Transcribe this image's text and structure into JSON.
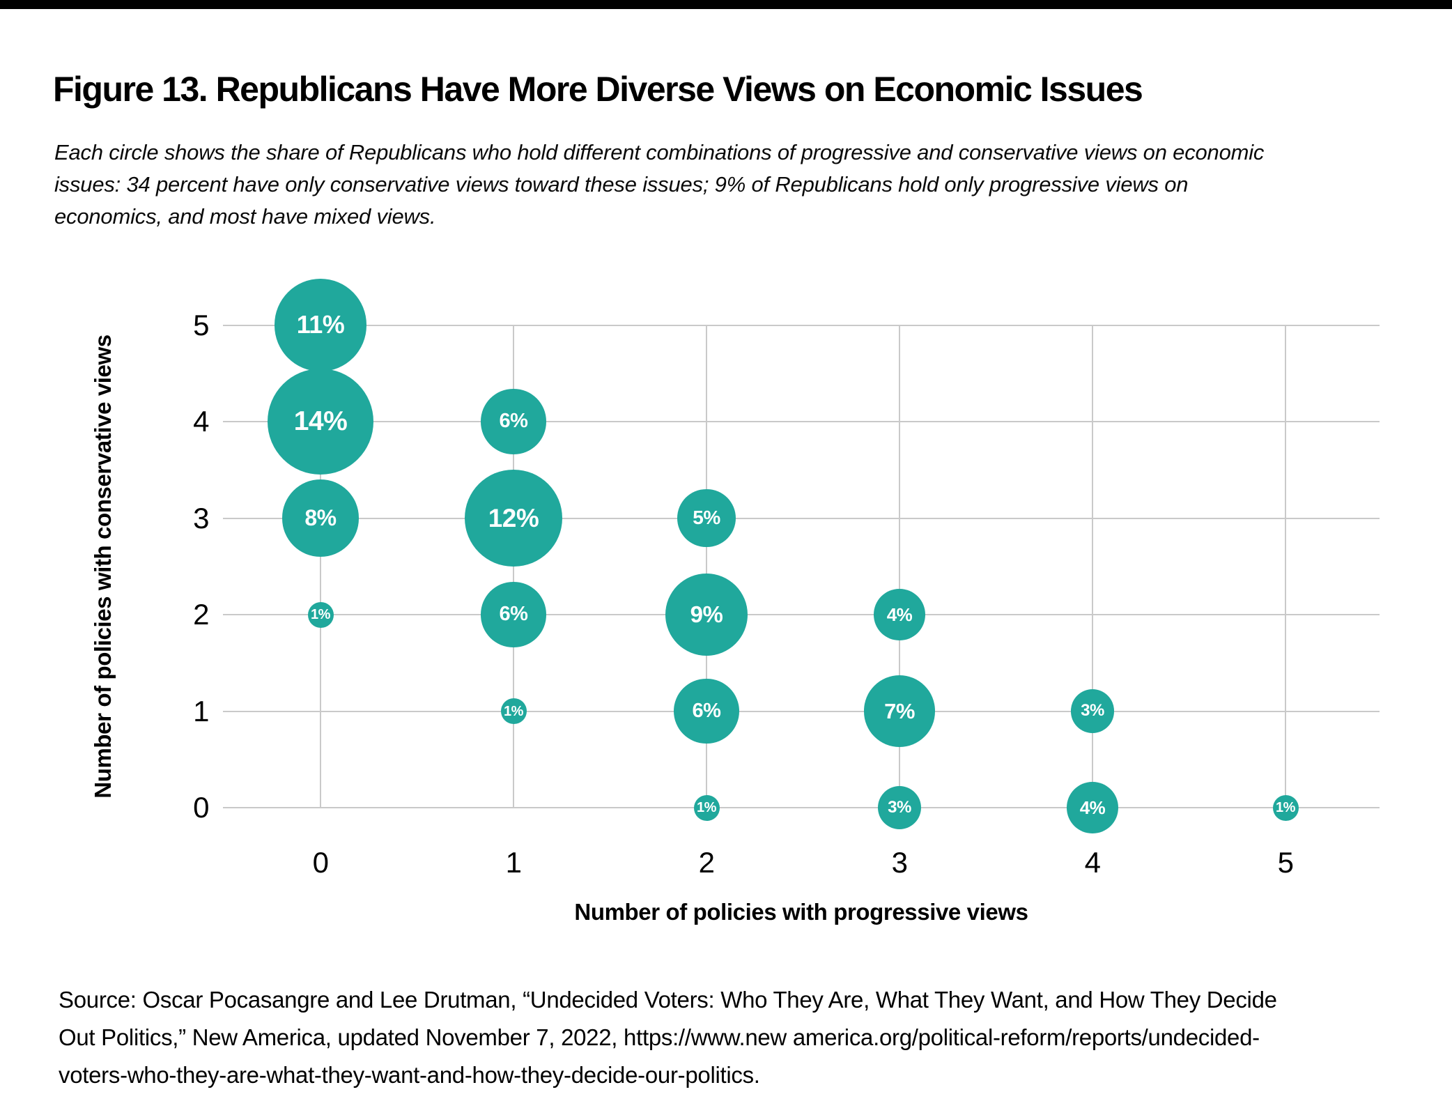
{
  "page": {
    "top_bar_color": "#000000",
    "background": "#ffffff"
  },
  "title": "Figure 13. Republicans Have More Diverse Views on Economic Issues",
  "subtitle_lines": [
    "Each circle shows the share of Republicans who hold different combinations of progressive and conservative views on economic",
    "issues: 34 percent have only conservative views toward these issues; 9% of Republicans hold only progressive views on",
    "economics, and most have mixed views."
  ],
  "chart_data": {
    "type": "scatter",
    "subtype": "bubble",
    "title": "",
    "xlabel": "Number of policies with progressive views",
    "ylabel": "Number of policies with conservative views",
    "x_ticks": [
      0,
      1,
      2,
      3,
      4,
      5
    ],
    "y_ticks": [
      0,
      1,
      2,
      3,
      4,
      5
    ],
    "xlim": [
      -0.5,
      5.5
    ],
    "ylim": [
      -0.5,
      5.5
    ],
    "grid": true,
    "grid_color": "#c9c9c9",
    "bubble_color": "#20A89C",
    "bubble_label_color": "#ffffff",
    "size_encoding": "circle area scales with percent share of Republicans",
    "points": [
      {
        "x": 0,
        "y": 5,
        "value": 11,
        "label": "11%"
      },
      {
        "x": 0,
        "y": 4,
        "value": 14,
        "label": "14%"
      },
      {
        "x": 0,
        "y": 3,
        "value": 8,
        "label": "8%"
      },
      {
        "x": 0,
        "y": 2,
        "value": 1,
        "label": "1%"
      },
      {
        "x": 1,
        "y": 4,
        "value": 6,
        "label": "6%"
      },
      {
        "x": 1,
        "y": 3,
        "value": 12,
        "label": "12%"
      },
      {
        "x": 1,
        "y": 2,
        "value": 6,
        "label": "6%"
      },
      {
        "x": 1,
        "y": 1,
        "value": 1,
        "label": "1%"
      },
      {
        "x": 2,
        "y": 3,
        "value": 5,
        "label": "5%"
      },
      {
        "x": 2,
        "y": 2,
        "value": 9,
        "label": "9%"
      },
      {
        "x": 2,
        "y": 1,
        "value": 6,
        "label": "6%"
      },
      {
        "x": 2,
        "y": 0,
        "value": 1,
        "label": "1%"
      },
      {
        "x": 3,
        "y": 2,
        "value": 4,
        "label": "4%"
      },
      {
        "x": 3,
        "y": 1,
        "value": 7,
        "label": "7%"
      },
      {
        "x": 3,
        "y": 0,
        "value": 3,
        "label": "3%"
      },
      {
        "x": 4,
        "y": 1,
        "value": 3,
        "label": "3%"
      },
      {
        "x": 4,
        "y": 0,
        "value": 4,
        "label": "4%"
      },
      {
        "x": 5,
        "y": 0,
        "value": 1,
        "label": "1%"
      }
    ]
  },
  "source_lines": [
    "Source: Oscar Pocasangre and Lee Drutman, “Undecided Voters: Who They Are, What They Want, and How They Decide",
    "Out Politics,” New America, updated November 7, 2022, https://www.new america.org/political-reform/reports/undecided-",
    "voters-who-they-are-what-they-want-and-how-they-decide-our-politics."
  ]
}
